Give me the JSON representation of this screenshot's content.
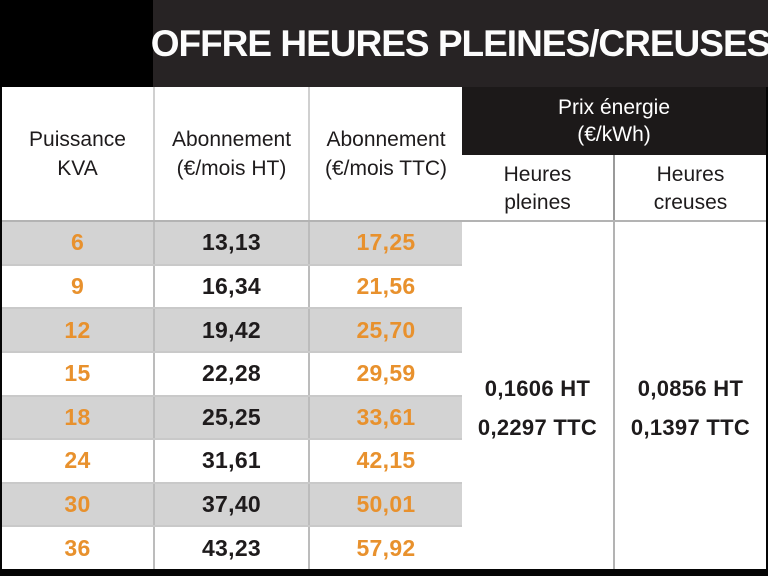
{
  "title": "OFFRE HEURES PLEINES/CREUSES",
  "header": {
    "puissance": "Puissance\nKVA",
    "abo_ht": "Abonnement\n(€/mois HT)",
    "abo_ttc": "Abonnement\n(€/mois TTC)",
    "prix_energie": "Prix énergie\n(€/kWh)",
    "heures_pleines": "Heures\npleines",
    "heures_creuses": "Heures\ncreuses"
  },
  "rows": [
    {
      "kva": "6",
      "ht": "13,13",
      "ttc": "17,25"
    },
    {
      "kva": "9",
      "ht": "16,34",
      "ttc": "21,56"
    },
    {
      "kva": "12",
      "ht": "19,42",
      "ttc": "25,70"
    },
    {
      "kva": "15",
      "ht": "22,28",
      "ttc": "29,59"
    },
    {
      "kva": "18",
      "ht": "25,25",
      "ttc": "33,61"
    },
    {
      "kva": "24",
      "ht": "31,61",
      "ttc": "42,15"
    },
    {
      "kva": "30",
      "ht": "37,40",
      "ttc": "50,01"
    },
    {
      "kva": "36",
      "ht": "43,23",
      "ttc": "57,92"
    }
  ],
  "energy": {
    "pleines": {
      "ht": "0,1606 HT",
      "ttc": "0,2297 TTC"
    },
    "creuses": {
      "ht": "0,0856 HT",
      "ttc": "0,1397 TTC"
    }
  },
  "colors": {
    "accent_orange": "#E8912D",
    "row_gray": "#D3D3D3",
    "banner_bg": "#272324",
    "energy_band_bg": "#1C1919",
    "text_dark": "#1E1B1C"
  },
  "chart_data": {
    "type": "table",
    "title": "OFFRE HEURES PLEINES/CREUSES",
    "columns": [
      "Puissance KVA",
      "Abonnement (€/mois HT)",
      "Abonnement (€/mois TTC)",
      "Prix énergie (€/kWh) Heures pleines",
      "Prix énergie (€/kWh) Heures creuses"
    ],
    "rows": [
      [
        6,
        "13,13",
        "17,25"
      ],
      [
        9,
        "16,34",
        "21,56"
      ],
      [
        12,
        "19,42",
        "25,70"
      ],
      [
        15,
        "22,28",
        "29,59"
      ],
      [
        18,
        "25,25",
        "33,61"
      ],
      [
        24,
        "31,61",
        "42,15"
      ],
      [
        30,
        "37,40",
        "50,01"
      ],
      [
        36,
        "43,23",
        "57,92"
      ]
    ],
    "prix_energie_eur_per_kwh": {
      "heures_pleines": {
        "HT": "0,1606",
        "TTC": "0,2297"
      },
      "heures_creuses": {
        "HT": "0,0856",
        "TTC": "0,1397"
      }
    }
  }
}
